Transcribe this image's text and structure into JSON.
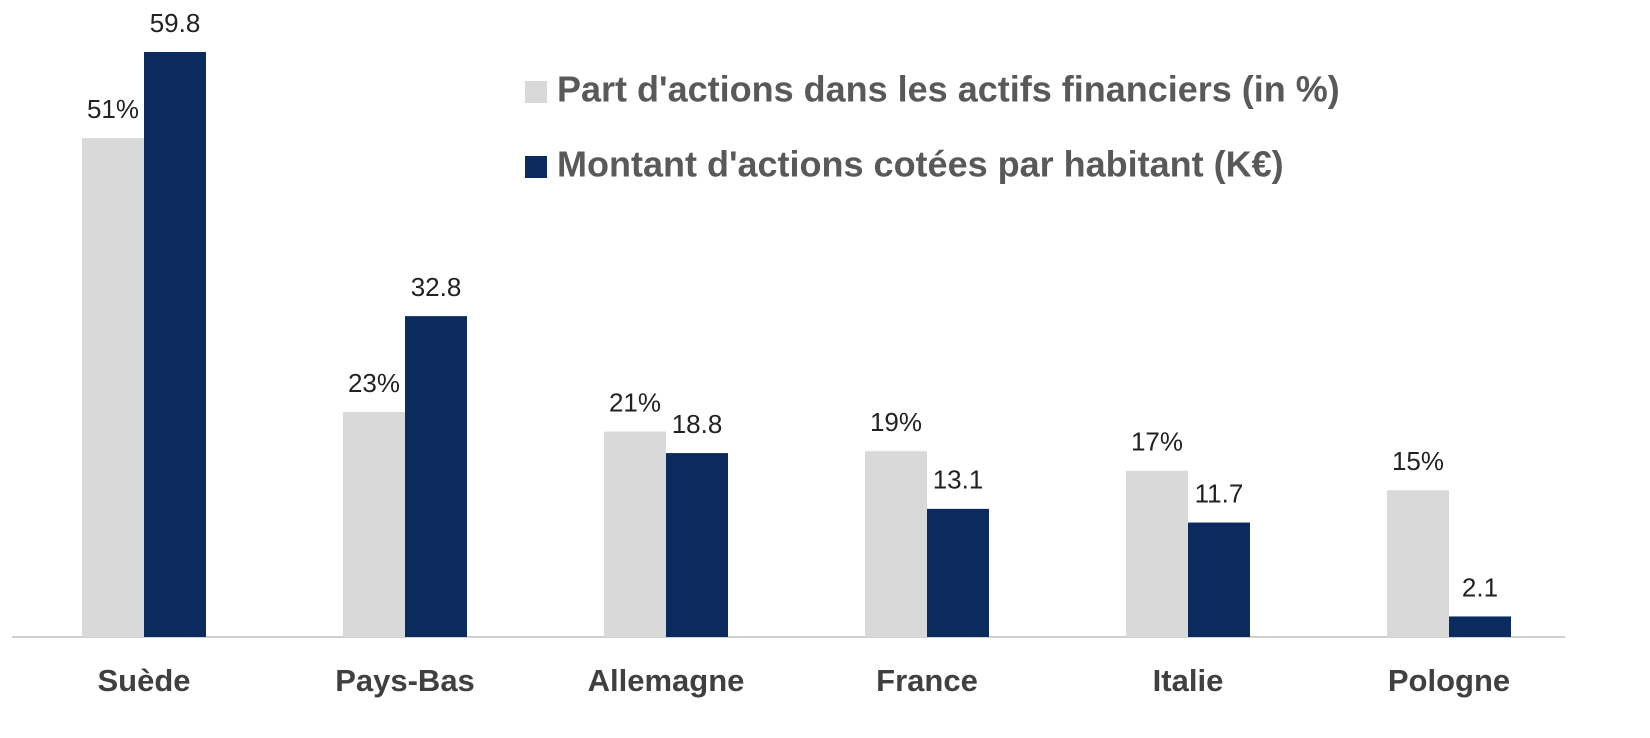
{
  "chart_data": {
    "type": "bar",
    "categories": [
      "Suède",
      "Pays-Bas",
      "Allemagne",
      "France",
      "Italie",
      "Pologne"
    ],
    "series": [
      {
        "name": "Part d'actions dans les actifs financiers (in %)",
        "color": "#d9d9d9",
        "values": [
          51,
          23,
          21,
          19,
          17,
          15
        ],
        "value_labels": [
          "51%",
          "23%",
          "21%",
          "19%",
          "17%",
          "15%"
        ]
      },
      {
        "name": "Montant d'actions cotées par habitant (K€)",
        "color": "#0b2a5e",
        "values": [
          59.8,
          32.8,
          18.8,
          13.1,
          11.7,
          2.1
        ]
      }
    ]
  }
}
